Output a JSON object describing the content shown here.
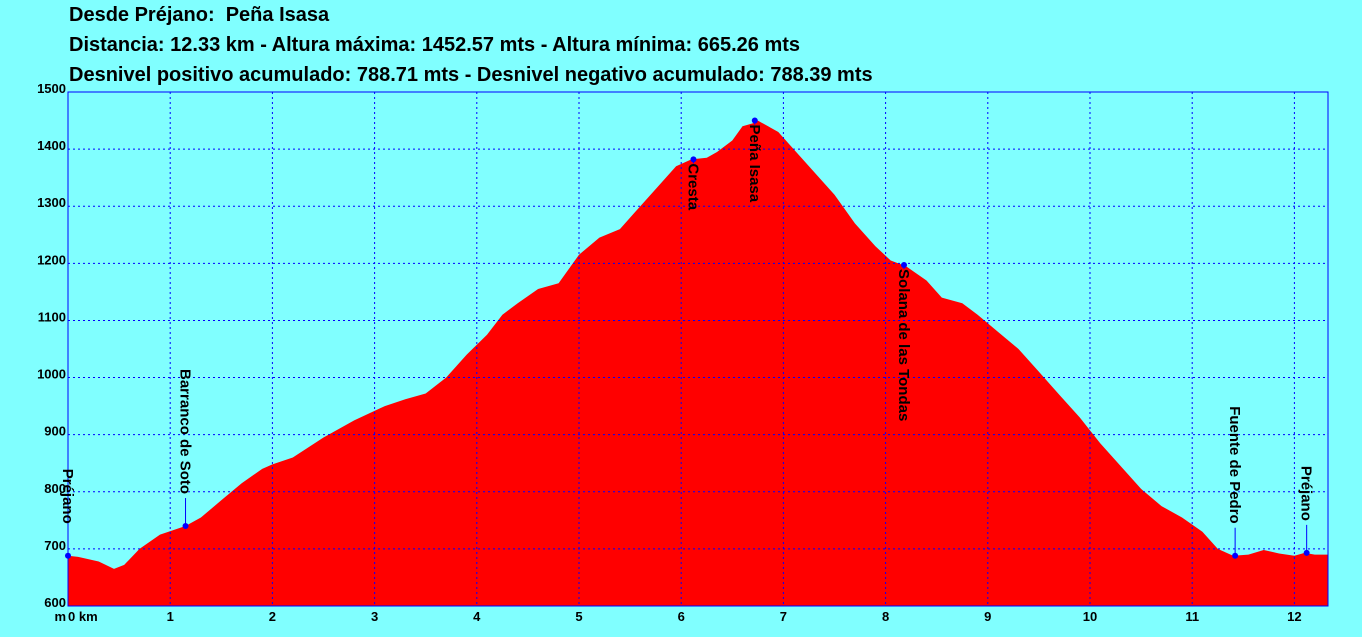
{
  "header": {
    "line1": "Desde Préjano:  Peña Isasa",
    "line2": "Distancia: 12.33 km - Altura máxima: 1452.57 mts - Altura mínima: 665.26 mts",
    "line3": "Desnivel positivo acumulado: 788.71 mts - Desnivel negativo acumulado: 788.39 mts"
  },
  "colors": {
    "background": "#80ffff",
    "fill": "#ff0000",
    "grid": "#0000ff",
    "marker": "#0000ff"
  },
  "chart_data": {
    "type": "area",
    "title": "Desde Préjano:  Peña Isasa",
    "xlabel": "km",
    "ylabel": "m",
    "xlim": [
      0,
      12.33
    ],
    "ylim": [
      600,
      1500
    ],
    "grid": true,
    "x_ticks": [
      0,
      1,
      2,
      3,
      4,
      5,
      6,
      7,
      8,
      9,
      10,
      11,
      12
    ],
    "y_ticks": [
      600,
      700,
      800,
      900,
      1000,
      1100,
      1200,
      1300,
      1400,
      1500
    ],
    "x_tick_labels": [
      "0 km",
      "1",
      "2",
      "3",
      "4",
      "5",
      "6",
      "7",
      "8",
      "9",
      "10",
      "11",
      "12"
    ],
    "y_tick_labels": [
      "600",
      "700",
      "800",
      "900",
      "1000",
      "1100",
      "1200",
      "1300",
      "1400",
      "1500"
    ],
    "y_unit_label": "m",
    "x": [
      0,
      0.1,
      0.3,
      0.45,
      0.55,
      0.7,
      0.9,
      1.15,
      1.3,
      1.5,
      1.7,
      1.9,
      2.0,
      2.2,
      2.5,
      2.8,
      3.1,
      3.3,
      3.5,
      3.7,
      3.9,
      4.1,
      4.25,
      4.4,
      4.6,
      4.8,
      5.0,
      5.2,
      5.4,
      5.6,
      5.8,
      5.95,
      6.1,
      6.25,
      6.35,
      6.5,
      6.6,
      6.7,
      6.75,
      6.85,
      6.95,
      7.1,
      7.3,
      7.5,
      7.7,
      7.9,
      8.05,
      8.2,
      8.4,
      8.55,
      8.75,
      8.9,
      9.1,
      9.3,
      9.5,
      9.7,
      9.9,
      10.1,
      10.3,
      10.5,
      10.7,
      10.9,
      11.1,
      11.25,
      11.4,
      11.55,
      11.7,
      11.85,
      12.0,
      12.1,
      12.2,
      12.33
    ],
    "y": [
      688,
      686,
      678,
      665,
      672,
      700,
      725,
      740,
      755,
      785,
      815,
      840,
      848,
      860,
      895,
      925,
      950,
      962,
      972,
      1000,
      1040,
      1075,
      1110,
      1130,
      1155,
      1165,
      1215,
      1245,
      1260,
      1300,
      1340,
      1370,
      1382,
      1385,
      1395,
      1415,
      1440,
      1445,
      1450,
      1440,
      1430,
      1400,
      1360,
      1320,
      1270,
      1230,
      1205,
      1195,
      1170,
      1140,
      1130,
      1110,
      1080,
      1050,
      1010,
      970,
      930,
      885,
      845,
      805,
      775,
      755,
      730,
      700,
      688,
      690,
      698,
      692,
      688,
      693,
      690,
      690
    ],
    "waypoints": [
      {
        "label": "Préjano",
        "x": 0.0,
        "y": 688
      },
      {
        "label": "Barranco de Soto",
        "x": 1.15,
        "y": 740
      },
      {
        "label": "Cresta",
        "x": 6.12,
        "y": 1382
      },
      {
        "label": "Peña Isasa",
        "x": 6.72,
        "y": 1450
      },
      {
        "label": "Solana de las Tondas",
        "x": 8.18,
        "y": 1197
      },
      {
        "label": "Fuente de Pedro",
        "x": 11.42,
        "y": 688
      },
      {
        "label": "Préjano",
        "x": 12.12,
        "y": 693
      }
    ]
  }
}
